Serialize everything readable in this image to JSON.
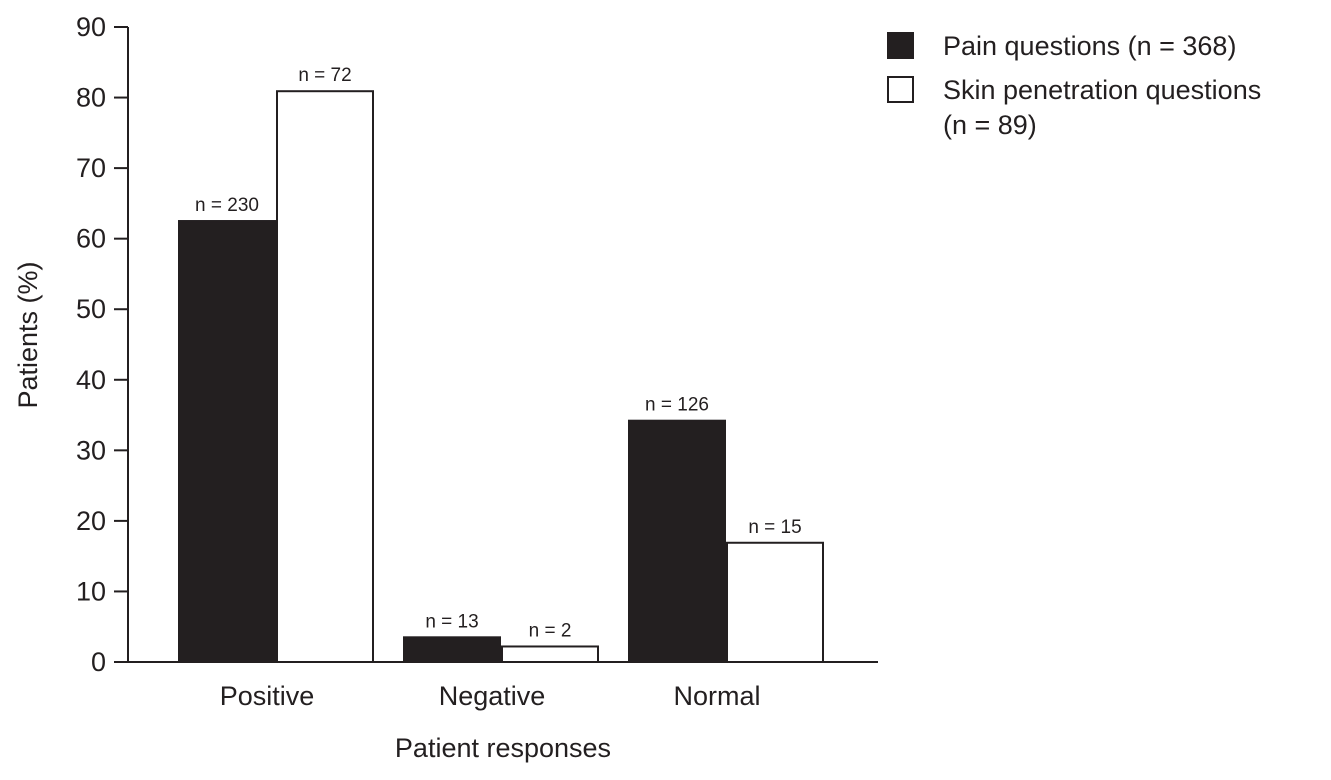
{
  "chart_data": {
    "type": "bar",
    "xlabel": "Patient responses",
    "ylabel": "Patients (%)",
    "ylim": [
      0,
      90
    ],
    "yticks": [
      0,
      10,
      20,
      30,
      40,
      50,
      60,
      70,
      80,
      90
    ],
    "categories": [
      "Positive",
      "Negative",
      "Normal"
    ],
    "series": [
      {
        "name": "Pain questions (n = 368)",
        "legend_lines": [
          "Pain questions (n = 368)"
        ],
        "color": "#231f20",
        "values": [
          62.5,
          3.5,
          34.2
        ],
        "labels": [
          "n = 230",
          "n = 13",
          "n = 126"
        ]
      },
      {
        "name": "Skin penetration questions (n = 89)",
        "legend_lines": [
          "Skin penetration questions",
          "(n = 89)"
        ],
        "color": "#ffffff",
        "values": [
          80.9,
          2.2,
          16.9
        ],
        "labels": [
          "n = 72",
          "n = 2",
          "n = 15"
        ]
      }
    ],
    "legend_position": "top-right",
    "grid": false
  }
}
